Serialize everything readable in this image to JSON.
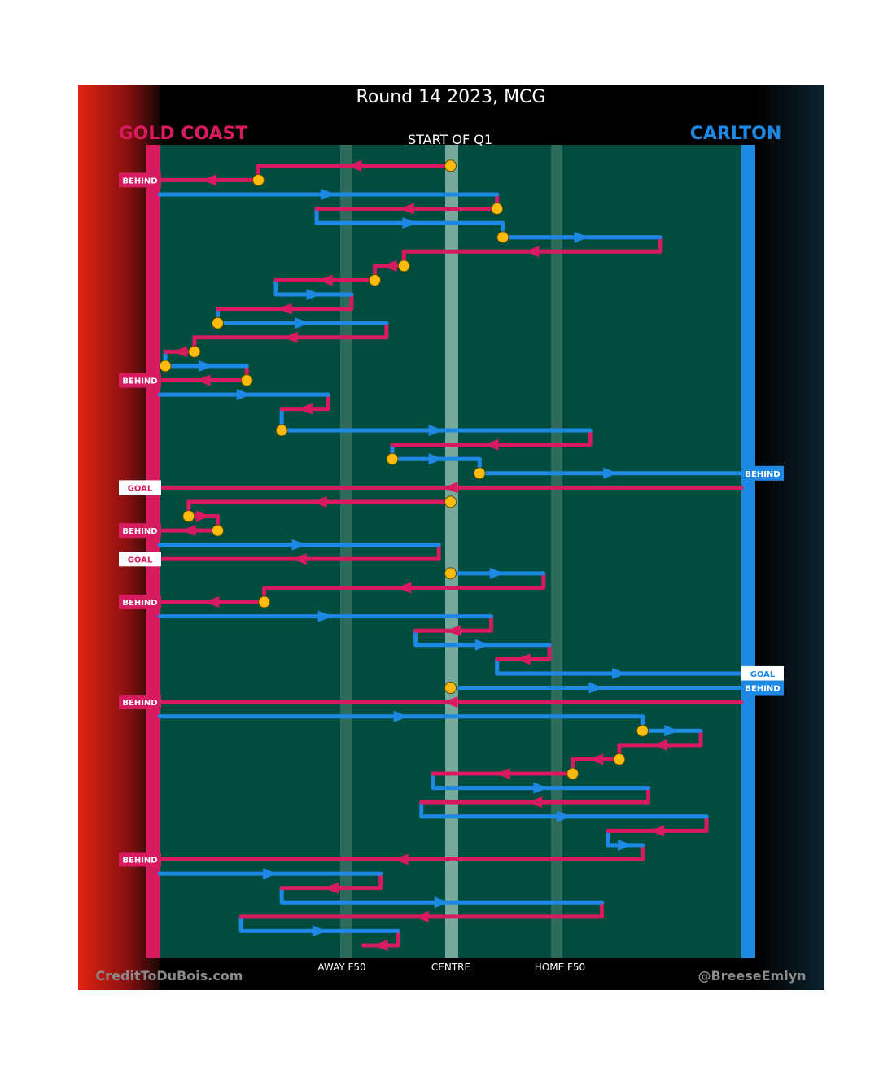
{
  "chart_data": {
    "type": "line",
    "subtype": "possession-chain-diagram",
    "title": "Round 14 2023, MCG",
    "period_label": "START OF Q1",
    "xaxis_labels": [
      "AWAY F50",
      "CENTRE",
      "HOME F50"
    ],
    "x_range": [
      0,
      100
    ],
    "x_ticks": [
      {
        "label": "AWAY F50",
        "x": 32
      },
      {
        "label": "CENTRE",
        "x": 50
      },
      {
        "label": "HOME F50",
        "x": 68
      }
    ],
    "teams": [
      {
        "side": "left",
        "name": "GOLD COAST",
        "color": "#d81b60",
        "scores": [
          "BEHIND",
          "BEHIND",
          "GOAL",
          "BEHIND",
          "GOAL",
          "BEHIND",
          "BEHIND",
          "BEHIND"
        ]
      },
      {
        "side": "right",
        "name": "CARLTON",
        "color": "#1e88e5",
        "scores": [
          "BEHIND",
          "GOAL",
          "BEHIND"
        ]
      }
    ],
    "colors": {
      "gold_coast": "#d81b60",
      "carlton": "#1e88e5",
      "field": "#004d40",
      "stoppage_marker": "#fdbb10"
    },
    "credits": {
      "left": "CreditToDuBois.com",
      "right": "@BreeseEmlyn"
    }
  },
  "segments": [
    {
      "t": "gc",
      "x1": 50,
      "x2": 17,
      "y": 1,
      "end": "",
      "stop": true
    },
    {
      "t": "gc",
      "x1": 17,
      "x2": 0,
      "y": 3,
      "end": "BEHIND",
      "stop": true
    },
    {
      "t": "cb",
      "x1": 0,
      "x2": 58,
      "y": 5,
      "end": "",
      "stop": false
    },
    {
      "t": "gc",
      "x1": 58,
      "x2": 27,
      "y": 7,
      "end": "",
      "stop": true
    },
    {
      "t": "cb",
      "x1": 27,
      "x2": 59,
      "y": 9,
      "end": "",
      "stop": false
    },
    {
      "t": "cb",
      "x1": 59,
      "x2": 86,
      "y": 11,
      "end": "",
      "stop": true
    },
    {
      "t": "gc",
      "x1": 86,
      "x2": 42,
      "y": 13,
      "end": "",
      "stop": false
    },
    {
      "t": "gc",
      "x1": 42,
      "x2": 37,
      "y": 15,
      "end": "",
      "stop": true
    },
    {
      "t": "gc",
      "x1": 37,
      "x2": 20,
      "y": 17,
      "end": "",
      "stop": true
    },
    {
      "t": "cb",
      "x1": 20,
      "x2": 33,
      "y": 19,
      "end": "",
      "stop": false
    },
    {
      "t": "gc",
      "x1": 33,
      "x2": 10,
      "y": 21,
      "end": "",
      "stop": false
    },
    {
      "t": "cb",
      "x1": 10,
      "x2": 39,
      "y": 23,
      "end": "",
      "stop": true
    },
    {
      "t": "gc",
      "x1": 39,
      "x2": 6,
      "y": 25,
      "end": "",
      "stop": false
    },
    {
      "t": "gc",
      "x1": 6,
      "x2": 1,
      "y": 27,
      "end": "",
      "stop": true
    },
    {
      "t": "cb",
      "x1": 1,
      "x2": 15,
      "y": 29,
      "end": "",
      "stop": true
    },
    {
      "t": "gc",
      "x1": 15,
      "x2": 0,
      "y": 31,
      "end": "BEHIND",
      "stop": true
    },
    {
      "t": "cb",
      "x1": 0,
      "x2": 29,
      "y": 33,
      "end": "",
      "stop": false
    },
    {
      "t": "gc",
      "x1": 29,
      "x2": 21,
      "y": 35,
      "end": "",
      "stop": false
    },
    {
      "t": "cb",
      "x1": 21,
      "x2": 74,
      "y": 38,
      "end": "",
      "stop": true
    },
    {
      "t": "gc",
      "x1": 74,
      "x2": 40,
      "y": 40,
      "end": "",
      "stop": false
    },
    {
      "t": "cb",
      "x1": 40,
      "x2": 55,
      "y": 42,
      "end": "",
      "stop": true
    },
    {
      "t": "cb",
      "x1": 55,
      "x2": 100,
      "y": 44,
      "end": "BEHIND",
      "stop": true
    },
    {
      "t": "gc",
      "x1": 100,
      "x2": 0,
      "y": 46,
      "end": "GOAL",
      "stop": false
    },
    {
      "t": "gc",
      "x1": 50,
      "x2": 5,
      "y": 48,
      "end": "",
      "stop": true
    },
    {
      "t": "gc",
      "x1": 5,
      "x2": 10,
      "y": 50,
      "end": "",
      "stop": true
    },
    {
      "t": "gc",
      "x1": 10,
      "x2": 0,
      "y": 52,
      "end": "BEHIND",
      "stop": true
    },
    {
      "t": "cb",
      "x1": 0,
      "x2": 48,
      "y": 54,
      "end": "",
      "stop": false
    },
    {
      "t": "gc",
      "x1": 48,
      "x2": 0,
      "y": 56,
      "end": "GOAL",
      "stop": false
    },
    {
      "t": "cb",
      "x1": 50,
      "x2": 66,
      "y": 58,
      "end": "",
      "stop": true
    },
    {
      "t": "gc",
      "x1": 66,
      "x2": 18,
      "y": 60,
      "end": "",
      "stop": false
    },
    {
      "t": "gc",
      "x1": 18,
      "x2": 0,
      "y": 62,
      "end": "BEHIND",
      "stop": true
    },
    {
      "t": "cb",
      "x1": 0,
      "x2": 57,
      "y": 64,
      "end": "",
      "stop": false
    },
    {
      "t": "gc",
      "x1": 57,
      "x2": 44,
      "y": 66,
      "end": "",
      "stop": false
    },
    {
      "t": "cb",
      "x1": 44,
      "x2": 67,
      "y": 68,
      "end": "",
      "stop": false
    },
    {
      "t": "gc",
      "x1": 67,
      "x2": 58,
      "y": 70,
      "end": "",
      "stop": false
    },
    {
      "t": "cb",
      "x1": 58,
      "x2": 100,
      "y": 72,
      "end": "GOAL",
      "stop": false
    },
    {
      "t": "cb",
      "x1": 50,
      "x2": 100,
      "y": 74,
      "end": "BEHIND",
      "stop": true
    },
    {
      "t": "gc",
      "x1": 100,
      "x2": 0,
      "y": 76,
      "end": "BEHIND",
      "stop": false
    },
    {
      "t": "cb",
      "x1": 0,
      "x2": 83,
      "y": 78,
      "end": "",
      "stop": false
    },
    {
      "t": "cb",
      "x1": 83,
      "x2": 93,
      "y": 80,
      "end": "",
      "stop": true
    },
    {
      "t": "gc",
      "x1": 93,
      "x2": 79,
      "y": 82,
      "end": "",
      "stop": false
    },
    {
      "t": "gc",
      "x1": 79,
      "x2": 71,
      "y": 84,
      "end": "",
      "stop": true
    },
    {
      "t": "gc",
      "x1": 71,
      "x2": 47,
      "y": 86,
      "end": "",
      "stop": true
    },
    {
      "t": "cb",
      "x1": 47,
      "x2": 84,
      "y": 88,
      "end": "",
      "stop": false
    },
    {
      "t": "gc",
      "x1": 84,
      "x2": 45,
      "y": 90,
      "end": "",
      "stop": false
    },
    {
      "t": "cb",
      "x1": 45,
      "x2": 94,
      "y": 92,
      "end": "",
      "stop": false
    },
    {
      "t": "gc",
      "x1": 94,
      "x2": 77,
      "y": 94,
      "end": "",
      "stop": false
    },
    {
      "t": "cb",
      "x1": 77,
      "x2": 83,
      "y": 96,
      "end": "",
      "stop": false
    },
    {
      "t": "gc",
      "x1": 83,
      "x2": 0,
      "y": 98,
      "end": "BEHIND",
      "stop": false
    },
    {
      "t": "cb",
      "x1": 0,
      "x2": 38,
      "y": 100,
      "end": "",
      "stop": false
    },
    {
      "t": "gc",
      "x1": 38,
      "x2": 21,
      "y": 102,
      "end": "",
      "stop": false
    },
    {
      "t": "cb",
      "x1": 21,
      "x2": 76,
      "y": 104,
      "end": "",
      "stop": false
    },
    {
      "t": "gc",
      "x1": 76,
      "x2": 14,
      "y": 106,
      "end": "",
      "stop": false
    },
    {
      "t": "cb",
      "x1": 14,
      "x2": 41,
      "y": 108,
      "end": "",
      "stop": false
    },
    {
      "t": "gc",
      "x1": 41,
      "x2": 35,
      "y": 110,
      "end": "",
      "stop": false
    }
  ]
}
